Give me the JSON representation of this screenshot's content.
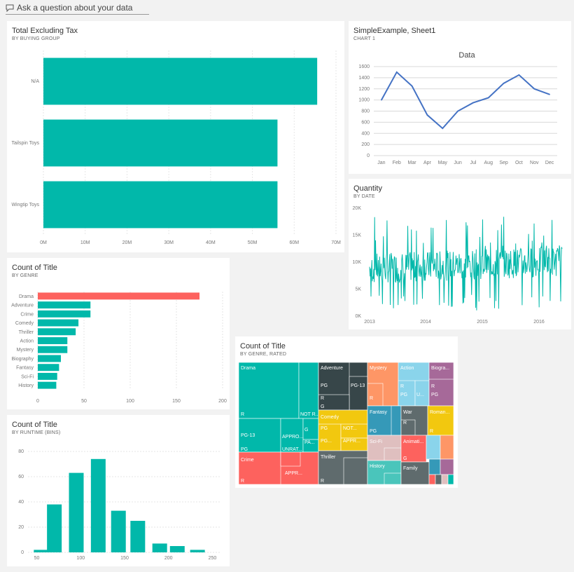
{
  "qa_bar": {
    "placeholder": "Ask a question about your data",
    "icon": "chat-icon"
  },
  "colors": {
    "teal": "#01b8aa",
    "red": "#fd625e",
    "line": "#4472c4",
    "grid": "#e6e6e6"
  },
  "tiles": {
    "tax": {
      "title": "Total Excluding Tax",
      "subtitle": "BY BUYING GROUP"
    },
    "simple": {
      "title": "SimpleExample, Sheet1",
      "subtitle": "CHART 1"
    },
    "quantity": {
      "title": "Quantity",
      "subtitle": "BY DATE"
    },
    "genre": {
      "title": "Count of Title",
      "subtitle": "BY GENRE"
    },
    "treemap": {
      "title": "Count of Title",
      "subtitle": "BY GENRE, RATED"
    },
    "runtime": {
      "title": "Count of Title",
      "subtitle": "BY RUNTIME (BINS)"
    }
  },
  "chart_data": [
    {
      "id": "tax",
      "type": "bar",
      "orientation": "horizontal",
      "categories": [
        "N/A",
        "Tailspin Toys",
        "Wingtip Toys"
      ],
      "values": [
        65.5,
        56,
        56
      ],
      "xlim": [
        0,
        70
      ],
      "xticks": [
        "0M",
        "10M",
        "20M",
        "30M",
        "40M",
        "50M",
        "60M",
        "70M"
      ],
      "grid": true
    },
    {
      "id": "simple",
      "type": "line",
      "title": "Data",
      "categories": [
        "Jan",
        "Feb",
        "Mar",
        "Apr",
        "May",
        "Jun",
        "Jul",
        "Aug",
        "Sep",
        "Oct",
        "Nov",
        "Dec"
      ],
      "values": [
        1000,
        1500,
        1250,
        730,
        490,
        800,
        950,
        1040,
        1300,
        1450,
        1200,
        1100
      ],
      "ylim": [
        0,
        1600
      ],
      "yticks": [
        "0",
        "200",
        "400",
        "600",
        "800",
        "1000",
        "1200",
        "1400",
        "1600"
      ],
      "grid": true
    },
    {
      "id": "quantity",
      "type": "line",
      "x": [
        "2013",
        "2014",
        "2015",
        "2016"
      ],
      "ylim": [
        0,
        20000
      ],
      "yticks": [
        "0K",
        "5K",
        "10K",
        "15K",
        "20K"
      ],
      "series_summary": {
        "low": 1000,
        "typical_low": 6000,
        "typical_high": 13000,
        "high": 18500
      },
      "grid": false
    },
    {
      "id": "genre",
      "type": "bar",
      "orientation": "horizontal",
      "categories": [
        "Drama",
        "Adventure",
        "Crime",
        "Comedy",
        "Thriller",
        "Action",
        "Mystery",
        "Biography",
        "Fantasy",
        "Sci-Fi",
        "History"
      ],
      "values": [
        175,
        57,
        57,
        44,
        41,
        32,
        32,
        25,
        23,
        21,
        20
      ],
      "highlight": "Drama",
      "xlim": [
        0,
        200
      ],
      "xticks": [
        "0",
        "50",
        "100",
        "150",
        "200"
      ],
      "grid": true
    },
    {
      "id": "runtime",
      "type": "bar",
      "categories": [
        55,
        70,
        95,
        120,
        143,
        165,
        190,
        210,
        233
      ],
      "values": [
        2,
        38,
        63,
        74,
        33,
        25,
        7,
        5,
        2
      ],
      "ylim": [
        0,
        80
      ],
      "yticks": [
        "0",
        "20",
        "40",
        "60",
        "80"
      ],
      "xticks": [
        "50",
        "100",
        "150",
        "200",
        "250"
      ],
      "xlim": [
        40,
        260
      ],
      "grid": true
    },
    {
      "id": "treemap",
      "type": "treemap",
      "groups": [
        {
          "name": "Drama",
          "color": "#01b8aa",
          "labels": [
            "R",
            "NOT R...",
            "PG-13",
            "APPRO...",
            "G",
            "PG",
            "UNRAT...",
            "PA..."
          ]
        },
        {
          "name": "Adventure",
          "color": "#374649",
          "labels": [
            "PG",
            "PG-13",
            "R",
            "G"
          ]
        },
        {
          "name": "Mystery",
          "color": "#fe9666",
          "labels": [
            "R"
          ]
        },
        {
          "name": "Action",
          "color": "#8ad4eb",
          "labels": [
            "R",
            "PG",
            "U..."
          ]
        },
        {
          "name": "Biogra...",
          "color": "#a66999",
          "labels": [
            "R",
            "PG"
          ]
        },
        {
          "name": "Comedy",
          "color": "#f2c80f",
          "labels": [
            "PG",
            "NOT...",
            "PG...",
            "APPR..."
          ]
        },
        {
          "name": "Fantasy",
          "color": "#3599b8",
          "labels": [
            "PG"
          ]
        },
        {
          "name": "War",
          "color": "#5f6b6d",
          "labels": [
            "R"
          ]
        },
        {
          "name": "Roman...",
          "color": "#f2c80f",
          "labels": [
            "R"
          ]
        },
        {
          "name": "Crime",
          "color": "#fd625e",
          "labels": [
            "R",
            "APPR..."
          ]
        },
        {
          "name": "Thriller",
          "color": "#5f6b6d",
          "labels": [
            "R"
          ]
        },
        {
          "name": "Sci-Fi",
          "color": "#dfbfbf",
          "labels": []
        },
        {
          "name": "Animati...",
          "color": "#fd625e",
          "labels": [
            "G"
          ]
        },
        {
          "name": "History",
          "color": "#4ac5bb",
          "labels": []
        },
        {
          "name": "Family",
          "color": "#5f6b6d",
          "labels": []
        }
      ]
    }
  ]
}
